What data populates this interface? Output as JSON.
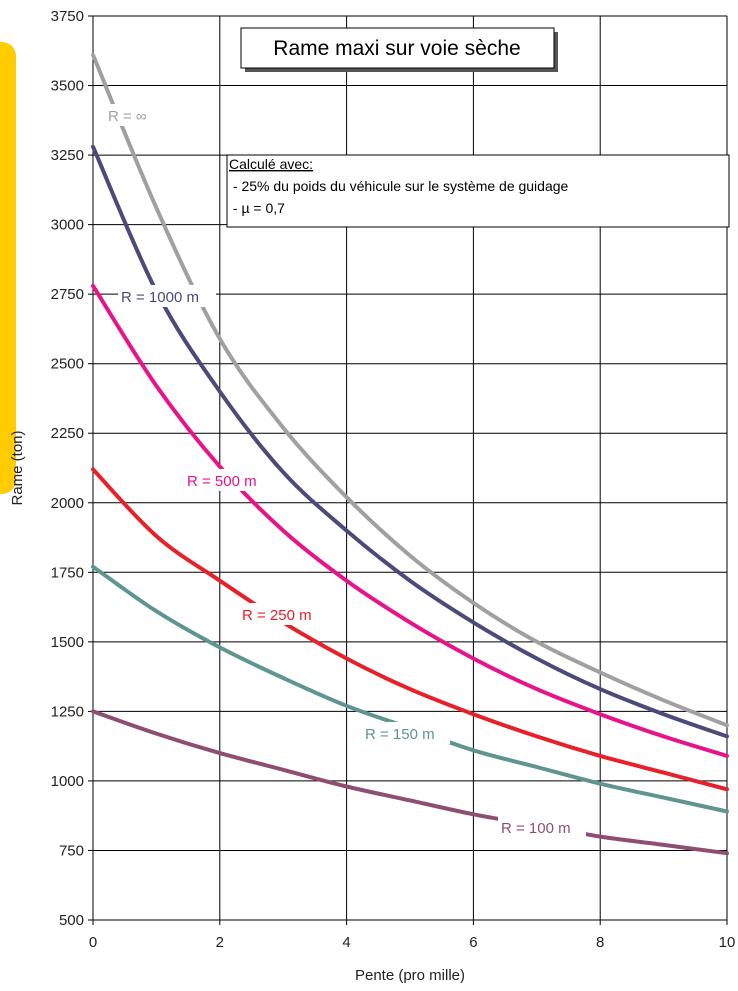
{
  "chart_data": {
    "type": "line",
    "title": "Rame maxi sur voie sèche",
    "xlabel": "Pente (pro mille)",
    "ylabel": "Rame (ton)",
    "xlim": [
      0,
      10
    ],
    "ylim": [
      500,
      3750
    ],
    "xticks": [
      0,
      2,
      4,
      6,
      8,
      10
    ],
    "yticks": [
      500,
      750,
      1000,
      1250,
      1500,
      1750,
      2000,
      2250,
      2500,
      2750,
      3000,
      3250,
      3500,
      3750
    ],
    "grid": true,
    "annotation": {
      "heading": "Calculé avec:",
      "lines": [
        " - 25% du poids du véhicule sur le système de guidage",
        " - µ = 0,7"
      ]
    },
    "series": [
      {
        "name": "R = ∞",
        "color": "#A0A0A0",
        "x": [
          0,
          1,
          2,
          3,
          4,
          5,
          6,
          7,
          8,
          9,
          10
        ],
        "y": [
          3610,
          3060,
          2590,
          2270,
          2020,
          1810,
          1640,
          1500,
          1390,
          1290,
          1200
        ]
      },
      {
        "name": "R = 1000 m",
        "color": "#4B4B7A",
        "x": [
          0,
          1,
          2,
          3,
          4,
          5,
          6,
          7,
          8,
          9,
          10
        ],
        "y": [
          3280,
          2760,
          2400,
          2110,
          1900,
          1720,
          1570,
          1440,
          1330,
          1240,
          1160
        ]
      },
      {
        "name": "R = 500 m",
        "color": "#E8138A",
        "x": [
          0,
          1,
          2,
          3,
          4,
          5,
          6,
          7,
          8,
          9,
          10
        ],
        "y": [
          2780,
          2420,
          2130,
          1900,
          1720,
          1570,
          1440,
          1330,
          1240,
          1160,
          1090
        ]
      },
      {
        "name": "R = 250 m",
        "color": "#E8202A",
        "x": [
          0,
          1,
          2,
          3,
          4,
          5,
          6,
          7,
          8,
          9,
          10
        ],
        "y": [
          2120,
          1880,
          1720,
          1570,
          1440,
          1330,
          1240,
          1160,
          1090,
          1030,
          970
        ]
      },
      {
        "name": "R = 150 m",
        "color": "#5E9590",
        "x": [
          0,
          1,
          2,
          3,
          4,
          5,
          6,
          7,
          8,
          9,
          10
        ],
        "y": [
          1770,
          1610,
          1480,
          1370,
          1270,
          1190,
          1110,
          1050,
          990,
          940,
          890
        ]
      },
      {
        "name": "R = 100 m",
        "color": "#8E4E72",
        "x": [
          0,
          1,
          2,
          3,
          4,
          5,
          6,
          7,
          8,
          9,
          10
        ],
        "y": [
          1250,
          1170,
          1100,
          1040,
          980,
          930,
          880,
          840,
          800,
          770,
          740
        ]
      }
    ]
  }
}
